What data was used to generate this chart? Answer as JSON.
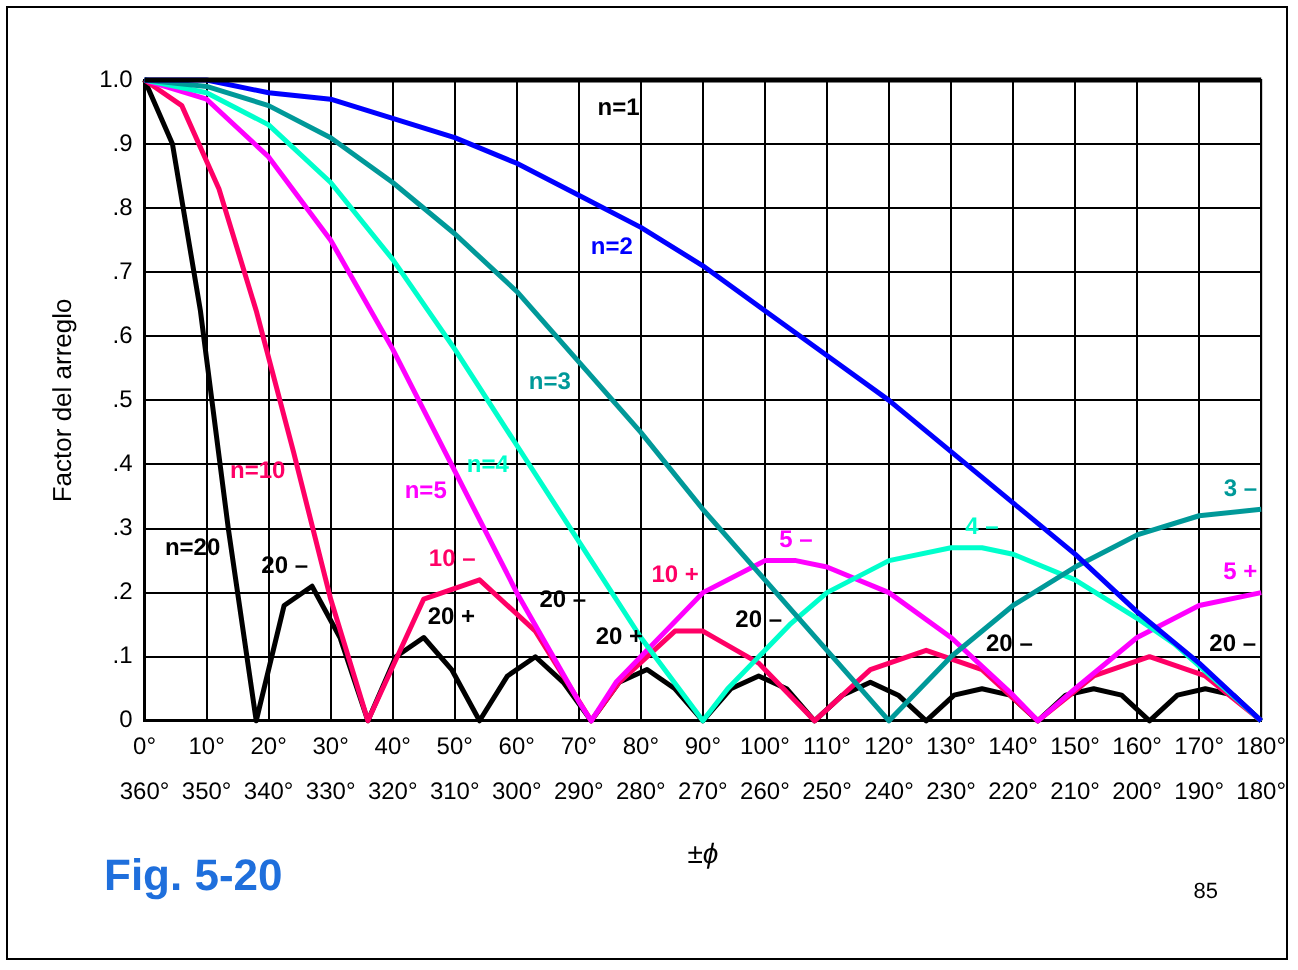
{
  "chart_data": {
    "type": "line",
    "xlabel": "±ϕ",
    "ylabel": "Factor del arreglo",
    "xlim": [
      0,
      180
    ],
    "ylim": [
      0,
      1
    ],
    "xticks": [
      {
        "value": 0,
        "label": "0°"
      },
      {
        "value": 10,
        "label": "10°"
      },
      {
        "value": 20,
        "label": "20°"
      },
      {
        "value": 30,
        "label": "30°"
      },
      {
        "value": 40,
        "label": "40°"
      },
      {
        "value": 50,
        "label": "50°"
      },
      {
        "value": 60,
        "label": "60°"
      },
      {
        "value": 70,
        "label": "70°"
      },
      {
        "value": 80,
        "label": "80°"
      },
      {
        "value": 90,
        "label": "90°"
      },
      {
        "value": 100,
        "label": "100°"
      },
      {
        "value": 110,
        "label": "110°"
      },
      {
        "value": 120,
        "label": "120°"
      },
      {
        "value": 130,
        "label": "130°"
      },
      {
        "value": 140,
        "label": "140°"
      },
      {
        "value": 150,
        "label": "150°"
      },
      {
        "value": 160,
        "label": "160°"
      },
      {
        "value": 170,
        "label": "170°"
      },
      {
        "value": 180,
        "label": "180°"
      }
    ],
    "x2lim": [
      360,
      180
    ],
    "x2ticks": [
      {
        "value": 360,
        "label": "360°"
      },
      {
        "value": 350,
        "label": "350°"
      },
      {
        "value": 340,
        "label": "340°"
      },
      {
        "value": 330,
        "label": "330°"
      },
      {
        "value": 320,
        "label": "320°"
      },
      {
        "value": 310,
        "label": "310°"
      },
      {
        "value": 300,
        "label": "300°"
      },
      {
        "value": 290,
        "label": "290°"
      },
      {
        "value": 280,
        "label": "280°"
      },
      {
        "value": 270,
        "label": "270°"
      },
      {
        "value": 260,
        "label": "260°"
      },
      {
        "value": 250,
        "label": "250°"
      },
      {
        "value": 240,
        "label": "240°"
      },
      {
        "value": 230,
        "label": "230°"
      },
      {
        "value": 220,
        "label": "220°"
      },
      {
        "value": 210,
        "label": "210°"
      },
      {
        "value": 200,
        "label": "200°"
      },
      {
        "value": 190,
        "label": "190°"
      },
      {
        "value": 180,
        "label": "180°"
      }
    ],
    "yticks": [
      0,
      {
        "value": 0.1,
        "label": ".1"
      },
      {
        "value": 0.2,
        "label": ".2"
      },
      {
        "value": 0.3,
        "label": ".3"
      },
      {
        "value": 0.4,
        "label": ".4"
      },
      {
        "value": 0.5,
        "label": ".5"
      },
      {
        "value": 0.6,
        "label": ".6"
      },
      {
        "value": 0.7,
        "label": ".7"
      },
      {
        "value": 0.8,
        "label": ".8"
      },
      {
        "value": 0.9,
        "label": ".9"
      },
      {
        "value": 1,
        "label": "1.0"
      }
    ],
    "grid": true,
    "legend": false,
    "ref_lines": [
      {
        "axis": "y",
        "value": 1,
        "label": "n=1",
        "color": "#000000"
      }
    ],
    "series": [
      {
        "color": "#0000ff",
        "x": [
          0,
          10,
          20,
          30,
          40,
          50,
          60,
          70,
          80,
          90,
          100,
          110,
          120,
          130,
          140,
          150,
          160,
          170,
          180
        ],
        "values": [
          1,
          1,
          0.98,
          0.97,
          0.94,
          0.91,
          0.87,
          0.82,
          0.77,
          0.71,
          0.64,
          0.57,
          0.5,
          0.42,
          0.34,
          0.26,
          0.17,
          0.09,
          0
        ]
      },
      {
        "color": "#009999",
        "x": [
          0,
          10,
          20,
          30,
          40,
          50,
          60,
          70,
          80,
          90,
          100,
          110,
          120,
          130,
          140,
          150,
          160,
          170,
          180
        ],
        "values": [
          1,
          0.99,
          0.96,
          0.91,
          0.84,
          0.76,
          0.67,
          0.56,
          0.45,
          0.33,
          0.22,
          0.11,
          0,
          0.1,
          0.18,
          0.24,
          0.29,
          0.32,
          0.33
        ]
      },
      {
        "color": "#00ffcc",
        "x": [
          0,
          10,
          20,
          30,
          40,
          50,
          60,
          70,
          80,
          90,
          94,
          104,
          110,
          120,
          130,
          135,
          140,
          150,
          160,
          166,
          180
        ],
        "values": [
          1,
          0.98,
          0.93,
          0.84,
          0.72,
          0.58,
          0.43,
          0.28,
          0.13,
          0,
          0.05,
          0.15,
          0.2,
          0.25,
          0.27,
          0.27,
          0.26,
          0.22,
          0.16,
          0.12,
          0
        ]
      },
      {
        "color": "#ff00ff",
        "x": [
          0,
          10,
          20,
          30,
          40,
          50,
          60,
          70,
          72,
          76,
          90,
          100,
          105,
          110,
          120,
          130,
          140,
          144,
          150,
          160,
          170,
          180
        ],
        "values": [
          1,
          0.97,
          0.88,
          0.75,
          0.58,
          0.39,
          0.2,
          0.03,
          0,
          0.06,
          0.2,
          0.25,
          0.25,
          0.24,
          0.2,
          0.13,
          0.04,
          0,
          0.05,
          0.13,
          0.18,
          0.2
        ]
      },
      {
        "color": "#ff0066",
        "x": [
          0,
          6,
          12,
          18,
          24,
          30,
          36,
          45,
          54,
          63,
          72,
          76.5,
          85.5,
          90,
          99,
          108,
          117,
          126,
          135,
          144,
          153,
          162,
          171,
          180
        ],
        "values": [
          1,
          0.96,
          0.83,
          0.64,
          0.42,
          0.19,
          0,
          0.19,
          0.22,
          0.14,
          0,
          0.06,
          0.14,
          0.14,
          0.09,
          0,
          0.08,
          0.11,
          0.08,
          0,
          0.07,
          0.1,
          0.07,
          0
        ]
      },
      {
        "color": "#000000",
        "x": [
          0,
          4.5,
          9,
          13.5,
          18,
          22.5,
          27,
          31.5,
          36,
          40.5,
          45,
          49.5,
          54,
          58.5,
          63,
          67.5,
          72,
          76.5,
          81,
          85.5,
          90,
          94.5,
          99,
          103.5,
          108,
          112.5,
          117,
          121.5,
          126,
          130.5,
          135,
          139.5,
          144,
          148.5,
          153,
          157.5,
          162,
          166.5,
          171,
          175.5,
          180
        ],
        "values": [
          1,
          0.9,
          0.64,
          0.3,
          0,
          0.18,
          0.21,
          0.13,
          0,
          0.1,
          0.13,
          0.08,
          0,
          0.07,
          0.1,
          0.06,
          0,
          0.06,
          0.08,
          0.05,
          0,
          0.05,
          0.07,
          0.05,
          0,
          0.04,
          0.06,
          0.04,
          0,
          0.04,
          0.05,
          0.04,
          0,
          0.04,
          0.05,
          0.04,
          0,
          0.04,
          0.05,
          0.04,
          0
        ]
      }
    ],
    "annotations": [
      {
        "text": "n=2",
        "x": 80,
        "y": 0.77
      },
      {
        "text": "n=3",
        "x": 70,
        "y": 0.56
      },
      {
        "text": "n=4",
        "x": 60,
        "y": 0.43
      },
      {
        "text": "n=5",
        "x": 50,
        "y": 0.39
      },
      {
        "text": "n=10",
        "x": 24,
        "y": 0.42
      },
      {
        "text": "n=20",
        "x": 13.5,
        "y": 0.3
      },
      {
        "text": "20 –",
        "x": 27,
        "y": 0.21
      },
      {
        "text": "20 +",
        "x": 45,
        "y": 0.13
      },
      {
        "text": "20 –",
        "x": 63,
        "y": 0.1
      },
      {
        "text": "20 +",
        "x": 81,
        "y": 0.08
      },
      {
        "text": "20 –",
        "x": 99,
        "y": 0.07
      },
      {
        "text": "20 –",
        "x": 135,
        "y": 0.05
      },
      {
        "text": "20 –",
        "x": 171,
        "y": 0.05
      },
      {
        "text": "10 –",
        "x": 54,
        "y": 0.22
      },
      {
        "text": "10 +",
        "x": 90,
        "y": 0.14
      },
      {
        "text": "5 –",
        "x": 105,
        "y": 0.25
      },
      {
        "text": "5 +",
        "x": 180,
        "y": 0.2
      },
      {
        "text": "4 –",
        "x": 135,
        "y": 0.27
      },
      {
        "text": "3 –",
        "x": 180,
        "y": 0.33
      },
      "Fig. 5-20",
      "85"
    ]
  }
}
